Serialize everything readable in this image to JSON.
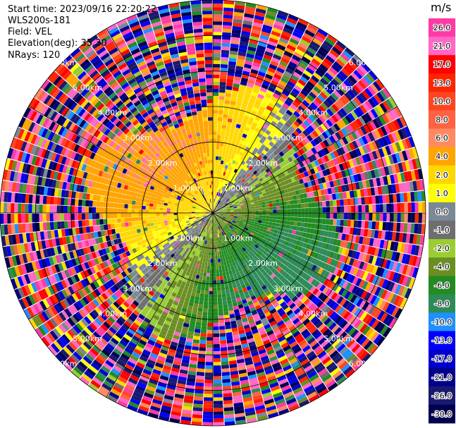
{
  "header": {
    "start_time": "Start time: 2023/09/16 22:20:22",
    "instrument": "WLS200s-181",
    "field": "Field: VEL",
    "elevation": "Elevation(deg): 35.30",
    "nrays": "NRays: 120"
  },
  "chart_data": {
    "type": "heatmap",
    "projection": "polar-ppi",
    "field": "VEL",
    "units": "m/s",
    "nrays": 120,
    "elevation_deg": 35.3,
    "max_range_km": 6.0,
    "range_rings_km": [
      1.0,
      2.0,
      3.0,
      4.0,
      5.0,
      6.0
    ],
    "ring_labels": [
      "1.00km",
      "2.00km",
      "3.00km",
      "4.00km",
      "5.00km",
      "6.00km"
    ],
    "spoke_angles_deg": [
      0,
      30,
      60,
      90,
      120,
      150,
      180,
      210,
      240,
      270,
      300,
      330
    ],
    "velocity_pattern": {
      "toward_direction_deg": 315,
      "peak_toward_ms": 6.0,
      "peak_away_ms": -7.0,
      "valid_range_km": [
        0.0,
        3.2
      ]
    },
    "colorbar": {
      "ticks": [
        "26.0",
        "21.0",
        "17.0",
        "13.0",
        "10.0",
        "8.0",
        "6.0",
        "4.0",
        "2.0",
        "1.0",
        "0.0",
        "-1.0",
        "-2.0",
        "-4.0",
        "-6.0",
        "-8.0",
        "-10.0",
        "-13.0",
        "-17.0",
        "-21.0",
        "-26.0",
        "-30.0"
      ],
      "bins": [
        {
          "from": 26,
          "to": 32,
          "color": "#ff3aa4"
        },
        {
          "from": 21,
          "to": 26,
          "color": "#ff68c4"
        },
        {
          "from": 17,
          "to": 21,
          "color": "#ff0000"
        },
        {
          "from": 13,
          "to": 17,
          "color": "#ff2400"
        },
        {
          "from": 10,
          "to": 13,
          "color": "#ff4520"
        },
        {
          "from": 8,
          "to": 10,
          "color": "#ff6242"
        },
        {
          "from": 6,
          "to": 8,
          "color": "#ff8a62"
        },
        {
          "from": 4,
          "to": 6,
          "color": "#ffa400"
        },
        {
          "from": 2,
          "to": 4,
          "color": "#ffd700"
        },
        {
          "from": 1,
          "to": 2,
          "color": "#ffff00"
        },
        {
          "from": 0,
          "to": 1,
          "color": "#7b8895"
        },
        {
          "from": -1,
          "to": 0,
          "color": "#6e6e6e"
        },
        {
          "from": -2,
          "to": -1,
          "color": "#9acd32"
        },
        {
          "from": -4,
          "to": -2,
          "color": "#6b8e23"
        },
        {
          "from": -6,
          "to": -4,
          "color": "#228b22"
        },
        {
          "from": -8,
          "to": -6,
          "color": "#2e8b57"
        },
        {
          "from": -10,
          "to": -8,
          "color": "#1e90ff"
        },
        {
          "from": -13,
          "to": -10,
          "color": "#0000ff"
        },
        {
          "from": -17,
          "to": -13,
          "color": "#0000cd"
        },
        {
          "from": -21,
          "to": -17,
          "color": "#00008b"
        },
        {
          "from": -26,
          "to": -21,
          "color": "#191970"
        },
        {
          "from": -30,
          "to": -26,
          "color": "#000050"
        }
      ]
    }
  }
}
